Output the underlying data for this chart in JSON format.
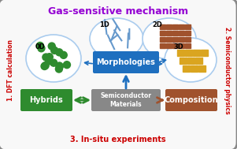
{
  "title": "Gas-sensitive mechanism",
  "title_color": "#9400D3",
  "left_label": "1. DFT calculation",
  "right_label": "2. Semiconductor physics",
  "bottom_label": "3. In-situ experiments",
  "left_label_color": "#CC0000",
  "right_label_color": "#CC0000",
  "bottom_label_color": "#CC0000",
  "outer_box_color": "#888888",
  "morphologies_box_color": "#1E6FBF",
  "morphologies_text": "Morphologies",
  "morphologies_text_color": "#FFFFFF",
  "hybrids_box_color": "#2E8B2E",
  "hybrids_text": "Hybrids",
  "hybrids_text_color": "#FFFFFF",
  "semiconductor_box_color": "#888888",
  "semiconductor_text": "Semiconductor\nMaterials",
  "semiconductor_text_color": "#FFFFFF",
  "composition_box_color": "#A0522D",
  "composition_text": "Composition",
  "composition_text_color": "#FFFFFF",
  "circle_0d_label": "0D",
  "circle_1d_label": "1D",
  "circle_2d_label": "2D",
  "circle_3d_label": "3D",
  "circle_color": "#AACCEE",
  "dot_0d_color": "#2E8B2E",
  "line_1d_color": "#6699CC",
  "square_2d_color": "#A0522D",
  "square_3d_color": "#DAA520",
  "arrow_color": "#1E6FBF",
  "background_color": "#FFFFFF"
}
